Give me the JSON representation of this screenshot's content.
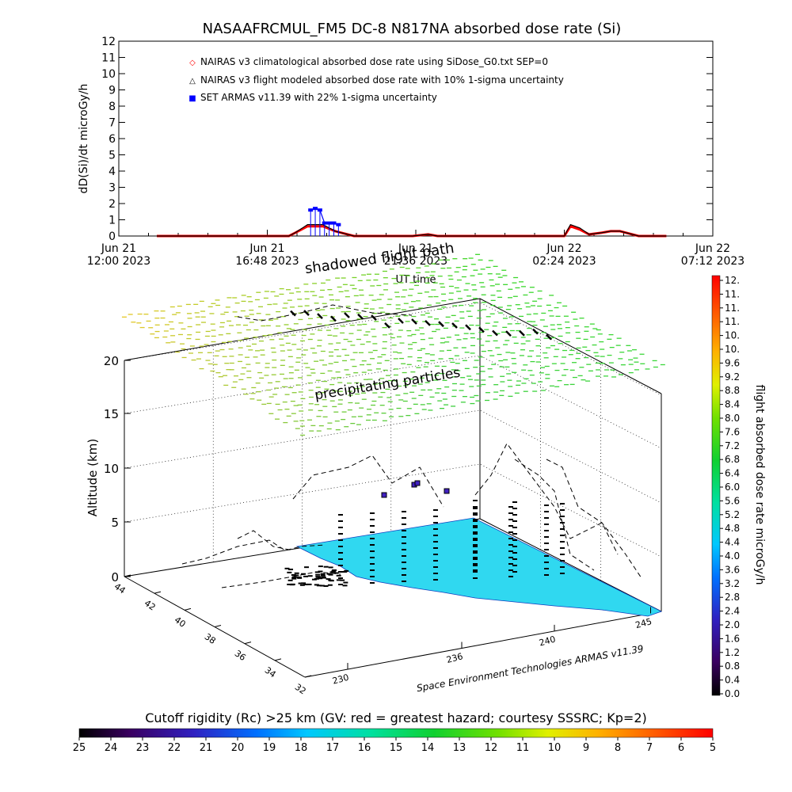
{
  "top_chart": {
    "title": "NASAAFRCMUL_FM5 DC-8   N817NA absorbed dose rate (Si)",
    "ylabel": "dD(Si)/dt microGy/h",
    "xlabel": "UT time",
    "yticks": [
      "0",
      "1",
      "2",
      "3",
      "4",
      "5",
      "6",
      "7",
      "8",
      "9",
      "10",
      "11",
      "12"
    ],
    "xticks": [
      {
        "l1": "Jun 21",
        "l2": "12:00 2023"
      },
      {
        "l1": "Jun 21",
        "l2": "16:48 2023"
      },
      {
        "l1": "Jun 21",
        "l2": "21:36 2023"
      },
      {
        "l1": "Jun 22",
        "l2": "02:24 2023"
      },
      {
        "l1": "Jun 22",
        "l2": "07:12 2023"
      }
    ],
    "legend": [
      {
        "symbol": "◇",
        "label": "NAIRAS v3 climatological absorbed dose rate using SiDose_G0.txt SEP=0",
        "color": "#ff0000"
      },
      {
        "symbol": "△",
        "label": "NAIRAS v3 flight modeled absorbed dose rate with 10% 1-sigma uncertainty",
        "color": "#000000"
      },
      {
        "symbol": "■",
        "label": "SET ARMAS v11.39 with 22% 1-sigma uncertainty",
        "color": "#0000ff"
      }
    ]
  },
  "chart_data": [
    {
      "type": "line",
      "title": "NASAAFRCMUL_FM5 DC-8   N817NA absorbed dose rate (Si)",
      "xlabel": "UT time",
      "ylabel": "dD(Si)/dt microGy/h",
      "ylim": [
        0,
        12
      ],
      "xlim": [
        "Jun 21 12:00 2023",
        "Jun 22 07:12 2023"
      ],
      "series": [
        {
          "name": "NAIRAS v3 climatological absorbed dose rate using SiDose_G0.txt SEP=0",
          "x": [
            1.23,
            5.5,
            5.7,
            6.1,
            6.6,
            7.0,
            7.6,
            9.5,
            10.0,
            10.3,
            13.2,
            14.4,
            14.6,
            14.9,
            15.2,
            15.6,
            15.9,
            16.2,
            16.8,
            17.7
          ],
          "y": [
            0,
            0,
            0.2,
            0.6,
            0.6,
            0.3,
            0,
            0,
            0.1,
            0,
            0,
            0,
            0.6,
            0.4,
            0.1,
            0.2,
            0.3,
            0.3,
            0,
            0
          ]
        },
        {
          "name": "NAIRAS v3 flight modeled absorbed dose rate with 10% 1-sigma uncertainty",
          "x": [
            1.23,
            5.5,
            5.7,
            6.1,
            6.6,
            7.0,
            7.6,
            9.5,
            10.0,
            10.3,
            13.2,
            14.4,
            14.6,
            14.9,
            15.2,
            15.6,
            15.9,
            16.2,
            16.8,
            17.7
          ],
          "y": [
            0,
            0,
            0.2,
            0.7,
            0.7,
            0.3,
            0,
            0,
            0.1,
            0,
            0,
            0,
            0.7,
            0.5,
            0.1,
            0.2,
            0.3,
            0.3,
            0,
            0
          ]
        },
        {
          "name": "SET ARMAS v11.39 with 22% 1-sigma uncertainty",
          "x": [
            6.2,
            6.35,
            6.5,
            6.65,
            6.8,
            6.95,
            7.1
          ],
          "y": [
            1.6,
            1.7,
            1.6,
            0.8,
            0.8,
            0.8,
            0.7
          ]
        }
      ]
    },
    {
      "type": "heatmap",
      "zlabel": "Altitude (km)",
      "zticks": [
        "0",
        "5",
        "10",
        "15",
        "20"
      ],
      "ylabel_ticks": [
        "44",
        "42",
        "40",
        "38",
        "36",
        "34",
        "32"
      ],
      "xlabel_ticks": [
        "230",
        "236",
        "240",
        "245"
      ],
      "colorbar_label": "flight absorbed dose rate microGy/h",
      "colorbar_ticks": [
        "0.0",
        "0.4",
        "0.8",
        "1.2",
        "1.6",
        "2.0",
        "2.4",
        "2.8",
        "3.2",
        "3.6",
        "4.0",
        "4.4",
        "4.8",
        "5.2",
        "5.6",
        "6.0",
        "6.4",
        "6.8",
        "7.2",
        "7.6",
        "8.0",
        "8.4",
        "8.8",
        "9.2",
        "9.6",
        "10.",
        "10.",
        "11.",
        "11.",
        "11.",
        "12."
      ]
    }
  ],
  "scene3d": {
    "label_shadowed": "shadowed flight path",
    "label_precip": "precipitating particles",
    "credit": "Space Environment Technologies ARMAS v11.39"
  },
  "bottom_bar": {
    "title": "Cutoff rigidity (Rc) >25 km (GV: red = greatest hazard; courtesy SSSRC; Kp=2)",
    "ticks": [
      "25",
      "24",
      "23",
      "22",
      "21",
      "20",
      "19",
      "18",
      "17",
      "16",
      "15",
      "14",
      "13",
      "12",
      "11",
      "10",
      "9",
      "8",
      "7",
      "6",
      "5"
    ]
  },
  "colors": {
    "plane": "#30d8f0",
    "red": "#ff0000",
    "blue": "#0000ff"
  }
}
